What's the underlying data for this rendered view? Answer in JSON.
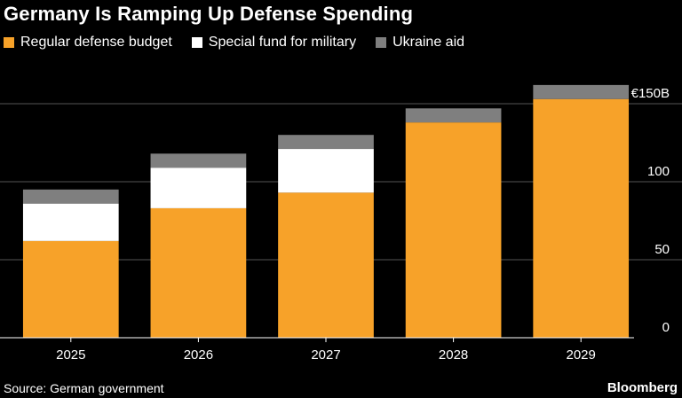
{
  "title": "Germany Is Ramping Up Defense Spending",
  "source": "Source: German government",
  "brand": "Bloomberg",
  "chart_data": {
    "type": "bar",
    "stacked": true,
    "categories": [
      "2025",
      "2026",
      "2027",
      "2028",
      "2029"
    ],
    "series": [
      {
        "name": "Regular defense budget",
        "color": "#f7a229",
        "values": [
          62,
          83,
          93,
          138,
          153
        ]
      },
      {
        "name": "Special fund for military",
        "color": "#ffffff",
        "values": [
          24,
          26,
          28,
          0,
          0
        ]
      },
      {
        "name": "Ukraine aid",
        "color": "#7f7f7f",
        "values": [
          9,
          9,
          9,
          9,
          9
        ]
      }
    ],
    "ylim": [
      0,
      150
    ],
    "yticks": [
      0,
      50,
      100,
      150
    ],
    "ytick_labels": [
      "0",
      "50",
      "100",
      "€150B"
    ],
    "grid": true,
    "legend_position": "top-left"
  }
}
